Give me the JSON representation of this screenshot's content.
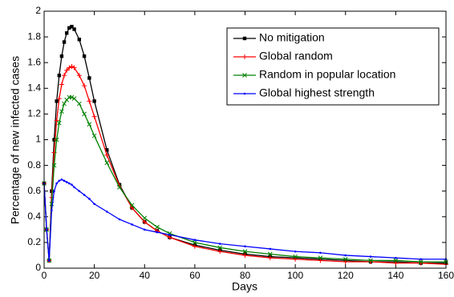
{
  "chart_data": {
    "type": "line",
    "xlabel": "Days",
    "ylabel": "Percentage of new infected cases",
    "x": [
      0,
      1,
      2,
      3,
      4,
      5,
      6,
      7,
      8,
      9,
      10,
      11,
      12,
      14,
      16,
      18,
      20,
      25,
      30,
      35,
      40,
      45,
      50,
      60,
      70,
      80,
      90,
      100,
      110,
      120,
      130,
      140,
      150,
      160
    ],
    "series": [
      {
        "name": "No mitigation",
        "color": "#000000",
        "marker": "square",
        "values": [
          0.66,
          0.3,
          0.06,
          0.6,
          1.0,
          1.3,
          1.5,
          1.65,
          1.76,
          1.83,
          1.87,
          1.88,
          1.86,
          1.78,
          1.65,
          1.48,
          1.3,
          0.92,
          0.65,
          0.47,
          0.36,
          0.29,
          0.24,
          0.18,
          0.14,
          0.11,
          0.09,
          0.08,
          0.07,
          0.06,
          0.05,
          0.05,
          0.04,
          0.04
        ]
      },
      {
        "name": "Global random",
        "color": "#ff0000",
        "marker": "plus",
        "values": [
          0.66,
          0.3,
          0.06,
          0.55,
          0.9,
          1.15,
          1.32,
          1.43,
          1.5,
          1.54,
          1.56,
          1.57,
          1.56,
          1.5,
          1.42,
          1.3,
          1.18,
          0.88,
          0.64,
          0.47,
          0.36,
          0.29,
          0.24,
          0.17,
          0.13,
          0.1,
          0.08,
          0.07,
          0.06,
          0.05,
          0.05,
          0.04,
          0.04,
          0.03
        ]
      },
      {
        "name": "Random in popular location",
        "color": "#008000",
        "marker": "x",
        "values": [
          0.66,
          0.3,
          0.06,
          0.5,
          0.8,
          1.0,
          1.13,
          1.22,
          1.28,
          1.31,
          1.33,
          1.33,
          1.32,
          1.28,
          1.2,
          1.12,
          1.03,
          0.82,
          0.63,
          0.49,
          0.39,
          0.32,
          0.27,
          0.2,
          0.16,
          0.13,
          0.11,
          0.09,
          0.08,
          0.07,
          0.06,
          0.06,
          0.05,
          0.05
        ]
      },
      {
        "name": "Global highest strength",
        "color": "#0000ff",
        "marker": "dot",
        "values": [
          0.66,
          0.3,
          0.06,
          0.45,
          0.6,
          0.66,
          0.68,
          0.69,
          0.68,
          0.67,
          0.66,
          0.65,
          0.63,
          0.6,
          0.57,
          0.54,
          0.5,
          0.44,
          0.38,
          0.34,
          0.3,
          0.28,
          0.26,
          0.22,
          0.19,
          0.17,
          0.15,
          0.13,
          0.12,
          0.1,
          0.09,
          0.08,
          0.07,
          0.07
        ]
      }
    ],
    "xlim": [
      0,
      160
    ],
    "xticks": [
      0,
      20,
      40,
      60,
      80,
      100,
      120,
      140,
      160
    ],
    "ylim": [
      0,
      2
    ],
    "yticks": [
      0,
      0.2,
      0.4,
      0.6,
      0.8,
      1,
      1.2,
      1.4,
      1.6,
      1.8,
      2
    ],
    "grid": false,
    "legend": "upper right"
  }
}
